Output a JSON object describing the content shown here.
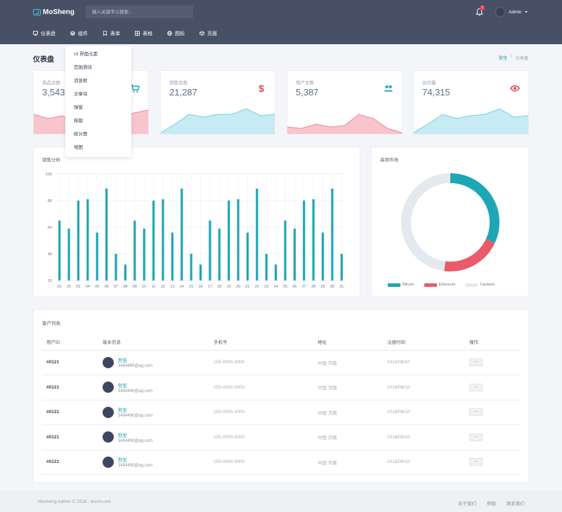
{
  "app": {
    "name": "MoSheng"
  },
  "search": {
    "placeholder": "输入关键字以搜索..."
  },
  "notifications": {
    "count": "7"
  },
  "user": {
    "name": "Admin"
  },
  "nav": [
    {
      "label": "仪表盘",
      "icon": "monitor-icon"
    },
    {
      "label": "组件",
      "icon": "layers-icon"
    },
    {
      "label": "表单",
      "icon": "bookmark-icon"
    },
    {
      "label": "表格",
      "icon": "grid-icon"
    },
    {
      "label": "图标",
      "icon": "globe-icon"
    },
    {
      "label": "页面",
      "icon": "box-icon"
    }
  ],
  "dropdown": [
    "UI 界面元素",
    "范围滑块",
    "消息框",
    "文章块",
    "弹窗",
    "排版",
    "统计图",
    "地图"
  ],
  "page": {
    "title": "仪表盘"
  },
  "breadcrumb": {
    "home": "默笙",
    "sep": "/",
    "current": "仪表盘"
  },
  "stats": [
    {
      "label": "商品总数",
      "value": "3,543",
      "icon": "cart-icon",
      "color": "#2aa7b8",
      "fill": "#f7c5cb",
      "stroke": "#ef8a97",
      "spark": [
        28,
        22,
        26,
        18,
        24,
        12,
        22,
        30,
        34
      ]
    },
    {
      "label": "销售总数",
      "value": "21,287",
      "icon": "dollar-icon",
      "color": "#e04b5a",
      "fill": "#c6ebf2",
      "stroke": "#6fd0e0",
      "spark": [
        2,
        14,
        28,
        24,
        28,
        28,
        36,
        26,
        28
      ]
    },
    {
      "label": "用户总数",
      "value": "5,387",
      "icon": "users-icon",
      "color": "#2aa7b8",
      "fill": "#f7c5cb",
      "stroke": "#ef8a97",
      "spark": [
        10,
        8,
        14,
        10,
        12,
        28,
        22,
        8,
        2
      ]
    },
    {
      "label": "访问量",
      "value": "74,315",
      "icon": "eye-icon",
      "color": "#e04b5a",
      "fill": "#c6ebf2",
      "stroke": "#6fd0e0",
      "spark": [
        2,
        14,
        28,
        22,
        26,
        28,
        36,
        24,
        26
      ]
    }
  ],
  "sales_panel": {
    "title": "销售分析"
  },
  "market_panel": {
    "title": "高频市场"
  },
  "chart_data": [
    {
      "type": "bar",
      "title": "销售分析",
      "categories": [
        "01",
        "02",
        "03",
        "04",
        "05",
        "06",
        "07",
        "08",
        "09",
        "10",
        "11",
        "12",
        "13",
        "14",
        "15",
        "16",
        "17",
        "18",
        "19",
        "20",
        "21",
        "22",
        "23",
        "24",
        "25",
        "26",
        "27",
        "28",
        "29",
        "30",
        "31"
      ],
      "values": [
        65,
        59,
        80,
        81,
        56,
        89,
        40,
        32,
        65,
        59,
        80,
        81,
        56,
        89,
        40,
        32,
        65,
        59,
        80,
        81,
        56,
        89,
        40,
        32,
        65,
        59,
        80,
        81,
        56,
        89,
        40
      ],
      "ylim": [
        20,
        100
      ],
      "yticks": [
        "100",
        "80",
        "60",
        "40",
        "20"
      ],
      "color": "#1fa6b4"
    },
    {
      "type": "pie",
      "title": "高频市场",
      "labels": [
        "Bitcoin",
        "Ethereum",
        "Cardano"
      ],
      "values": [
        32,
        20,
        48
      ],
      "colors": [
        "#1fa6b4",
        "#ea5a6b",
        "#e4e9ef"
      ]
    }
  ],
  "customers": {
    "title": "客户列表",
    "columns": [
      "用户ID",
      "基本信息",
      "手机号",
      "地址",
      "注册时间",
      "操作"
    ],
    "rows": [
      {
        "id": "#0121",
        "name": "默笙",
        "email": "3494490@qq.com",
        "phone": "155-0000-0000",
        "address": "中国 河南",
        "date": "2018/08/10",
        "action": "···"
      },
      {
        "id": "#0121",
        "name": "默笙",
        "email": "3494490@qq.com",
        "phone": "155-0000-0000",
        "address": "中国 河南",
        "date": "2018/08/10",
        "action": "···"
      },
      {
        "id": "#0121",
        "name": "默笙",
        "email": "3494490@qq.com",
        "phone": "155-0000-0000",
        "address": "中国 河南",
        "date": "2018/08/10",
        "action": "···"
      },
      {
        "id": "#0121",
        "name": "默笙",
        "email": "3494490@qq.com",
        "phone": "155-0000-0000",
        "address": "中国 河南",
        "date": "2018/08/10",
        "action": "···"
      },
      {
        "id": "#0121",
        "name": "默笙",
        "email": "3494490@qq.com",
        "phone": "155-0000-0000",
        "address": "中国 河南",
        "date": "2018/08/10",
        "action": "···"
      }
    ]
  },
  "footer": {
    "copyright": "Mosheng Admin © 2018 - tecmo.net",
    "links": [
      "关于我们",
      "帮助",
      "联系我们"
    ]
  }
}
